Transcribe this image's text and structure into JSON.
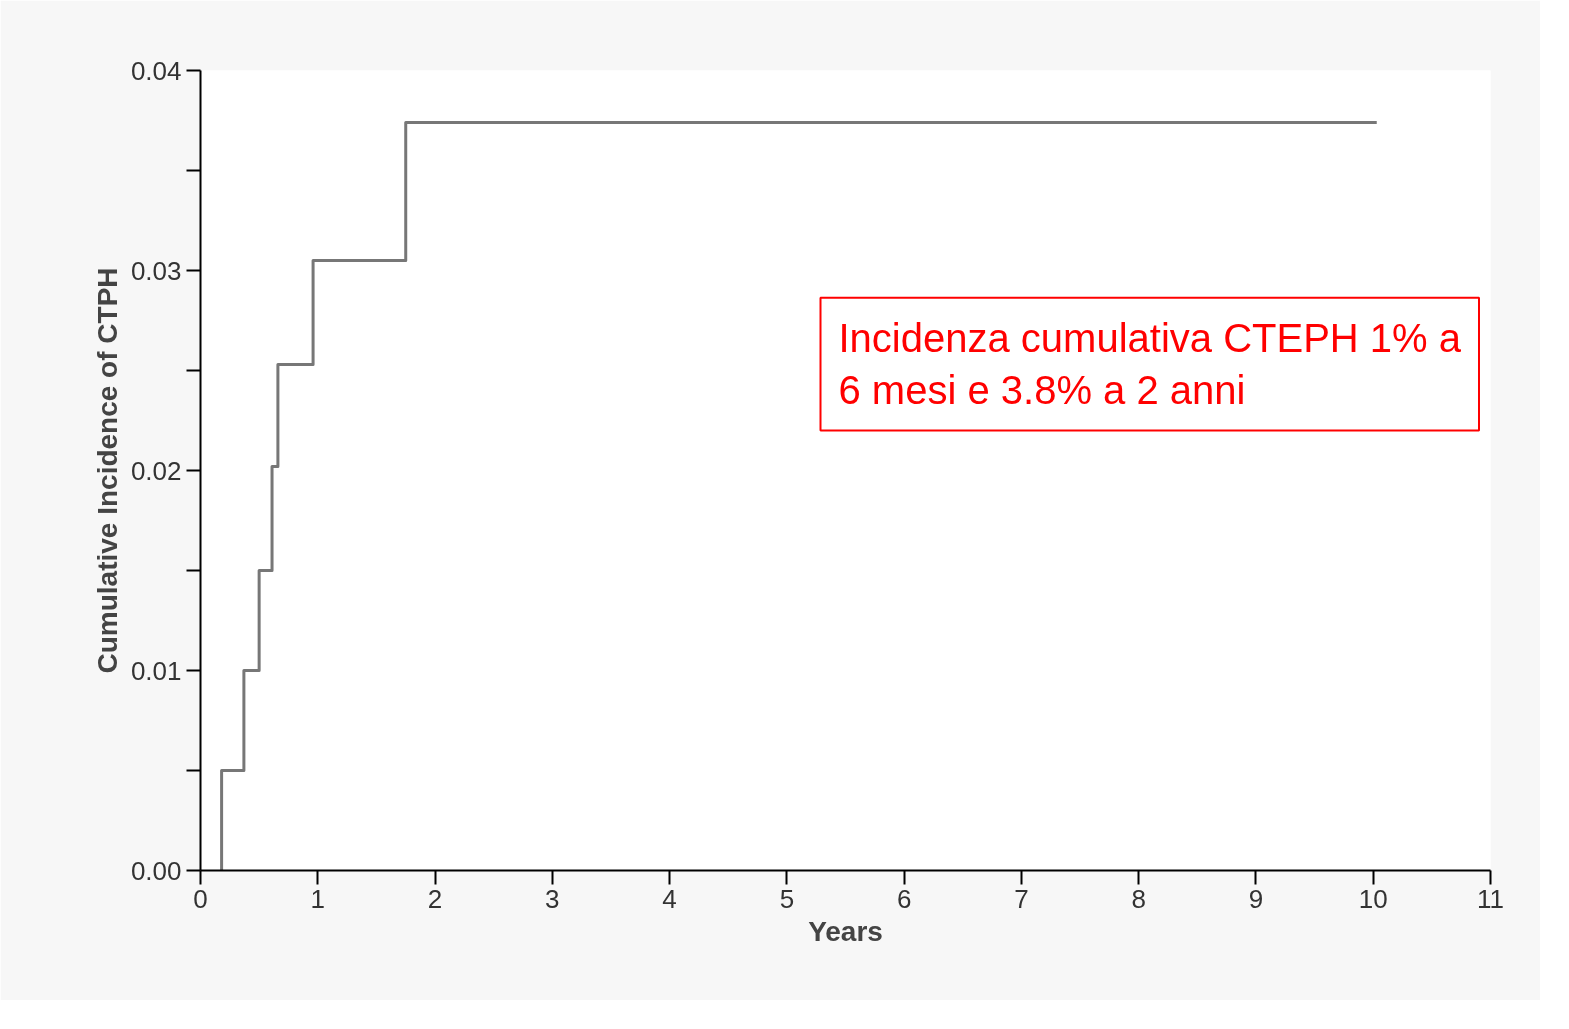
{
  "chart_data": {
    "type": "step",
    "xlabel": "Years",
    "ylabel": "Cumulative Incidence of CTPH",
    "x": [
      0.18,
      0.18,
      0.37,
      0.5,
      0.61,
      0.66,
      0.96,
      1.75,
      10.03
    ],
    "series": [
      {
        "color": "#777777",
        "values": [
          0,
          0.005,
          0.01,
          0.015,
          0.0202,
          0.0253,
          0.0305,
          0.0374,
          0.0374
        ]
      }
    ],
    "xlim": [
      0,
      11
    ],
    "ylim": [
      0,
      0.04
    ],
    "xticks": [
      0,
      1,
      2,
      3,
      4,
      5,
      6,
      7,
      8,
      9,
      10,
      11
    ],
    "yticks": [
      {
        "value": 0,
        "label": "0.00"
      },
      {
        "value": 0.005,
        "label": null
      },
      {
        "value": 0.01,
        "label": "0.01"
      },
      {
        "value": 0.015,
        "label": null
      },
      {
        "value": 0.02,
        "label": "0.02"
      },
      {
        "value": 0.025,
        "label": null
      },
      {
        "value": 0.03,
        "label": "0.03"
      },
      {
        "value": 0.035,
        "label": null
      },
      {
        "value": 0.04,
        "label": "0.04"
      }
    ],
    "annotations": [
      "Incidenza cumulativa CTEPH 1% a\n6 mesi e 3.8% a 2 anni"
    ],
    "grid": false,
    "line_style": "solid"
  }
}
